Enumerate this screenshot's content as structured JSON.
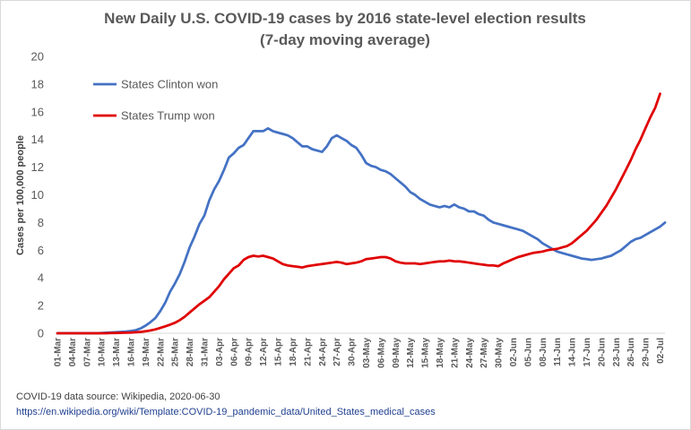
{
  "chart_data": {
    "type": "line",
    "title": "New Daily U.S. COVID-19 cases by 2016 state-level election results",
    "subtitle": "(7-day moving average)",
    "ylabel": "Cases  per 100,000 people",
    "xlabel": "",
    "ylim": [
      0,
      20
    ],
    "yticks": [
      0,
      2,
      4,
      6,
      8,
      10,
      12,
      14,
      16,
      18,
      20
    ],
    "grid": false,
    "legend_position": "top-left",
    "start_date": "2020-03-01",
    "x_tick_labels": [
      "01-Mar",
      "04-Mar",
      "07-Mar",
      "10-Mar",
      "13-Mar",
      "16-Mar",
      "19-Mar",
      "22-Mar",
      "25-Mar",
      "28-Mar",
      "31-Mar",
      "03-Apr",
      "06-Apr",
      "09-Apr",
      "12-Apr",
      "15-Apr",
      "18-Apr",
      "21-Apr",
      "24-Apr",
      "27-Apr",
      "30-Apr",
      "03-May",
      "06-May",
      "09-May",
      "12-May",
      "15-May",
      "18-May",
      "21-May",
      "24-May",
      "27-May",
      "30-May",
      "02-Jun",
      "05-Jun",
      "08-Jun",
      "11-Jun",
      "14-Jun",
      "17-Jun",
      "20-Jun",
      "23-Jun",
      "26-Jun",
      "29-Jun",
      "02-Jul"
    ],
    "series": [
      {
        "name": "States Clinton won",
        "color": "#4472c4",
        "values": [
          0,
          0,
          0,
          0,
          0,
          0,
          0,
          0,
          0,
          0.02,
          0.04,
          0.06,
          0.08,
          0.1,
          0.12,
          0.16,
          0.22,
          0.35,
          0.55,
          0.8,
          1.1,
          1.6,
          2.2,
          3.0,
          3.6,
          4.3,
          5.2,
          6.2,
          7.0,
          7.9,
          8.5,
          9.6,
          10.4,
          11.0,
          11.8,
          12.7,
          13.0,
          13.4,
          13.6,
          14.1,
          14.6,
          14.6,
          14.6,
          14.8,
          14.6,
          14.5,
          14.4,
          14.3,
          14.1,
          13.8,
          13.5,
          13.5,
          13.3,
          13.2,
          13.1,
          13.5,
          14.1,
          14.3,
          14.1,
          13.9,
          13.6,
          13.4,
          12.9,
          12.3,
          12.1,
          12.0,
          11.8,
          11.7,
          11.5,
          11.2,
          10.9,
          10.6,
          10.2,
          10.0,
          9.7,
          9.5,
          9.3,
          9.2,
          9.1,
          9.2,
          9.1,
          9.3,
          9.1,
          9.0,
          8.8,
          8.8,
          8.6,
          8.5,
          8.2,
          8.0,
          7.9,
          7.8,
          7.7,
          7.6,
          7.5,
          7.4,
          7.2,
          7.0,
          6.8,
          6.5,
          6.3,
          6.1,
          5.9,
          5.8,
          5.7,
          5.6,
          5.5,
          5.4,
          5.35,
          5.3,
          5.35,
          5.4,
          5.5,
          5.6,
          5.8,
          6.0,
          6.3,
          6.6,
          6.8,
          6.9,
          7.1,
          7.3,
          7.5,
          7.7,
          8.0
        ]
      },
      {
        "name": "States Trump won",
        "color": "#e00000",
        "values": [
          0,
          0,
          0,
          0,
          0,
          0,
          0,
          0,
          0,
          0,
          0,
          0.01,
          0.02,
          0.03,
          0.04,
          0.05,
          0.07,
          0.1,
          0.14,
          0.2,
          0.28,
          0.38,
          0.5,
          0.62,
          0.76,
          0.95,
          1.2,
          1.5,
          1.8,
          2.1,
          2.35,
          2.6,
          3.0,
          3.4,
          3.9,
          4.3,
          4.7,
          4.9,
          5.3,
          5.5,
          5.6,
          5.55,
          5.6,
          5.5,
          5.4,
          5.2,
          5.0,
          4.9,
          4.85,
          4.8,
          4.75,
          4.85,
          4.9,
          4.95,
          5.0,
          5.05,
          5.1,
          5.15,
          5.1,
          5.0,
          5.05,
          5.1,
          5.2,
          5.35,
          5.4,
          5.45,
          5.5,
          5.5,
          5.4,
          5.2,
          5.1,
          5.05,
          5.05,
          5.05,
          5.0,
          5.05,
          5.1,
          5.15,
          5.2,
          5.2,
          5.25,
          5.2,
          5.2,
          5.15,
          5.1,
          5.05,
          5.0,
          4.95,
          4.9,
          4.9,
          4.85,
          5.05,
          5.2,
          5.35,
          5.5,
          5.6,
          5.7,
          5.8,
          5.85,
          5.9,
          6.0,
          6.05,
          6.1,
          6.2,
          6.3,
          6.5,
          6.8,
          7.1,
          7.4,
          7.8,
          8.2,
          8.7,
          9.2,
          9.8,
          10.4,
          11.1,
          11.8,
          12.5,
          13.3,
          14.0,
          14.8,
          15.6,
          16.3,
          17.3
        ]
      }
    ]
  },
  "source": {
    "note": "COVID-19 data source: Wikipedia, 2020-06-30",
    "url": "https://en.wikipedia.org/wiki/Template:COVID-19_pandemic_data/United_States_medical_cases"
  }
}
